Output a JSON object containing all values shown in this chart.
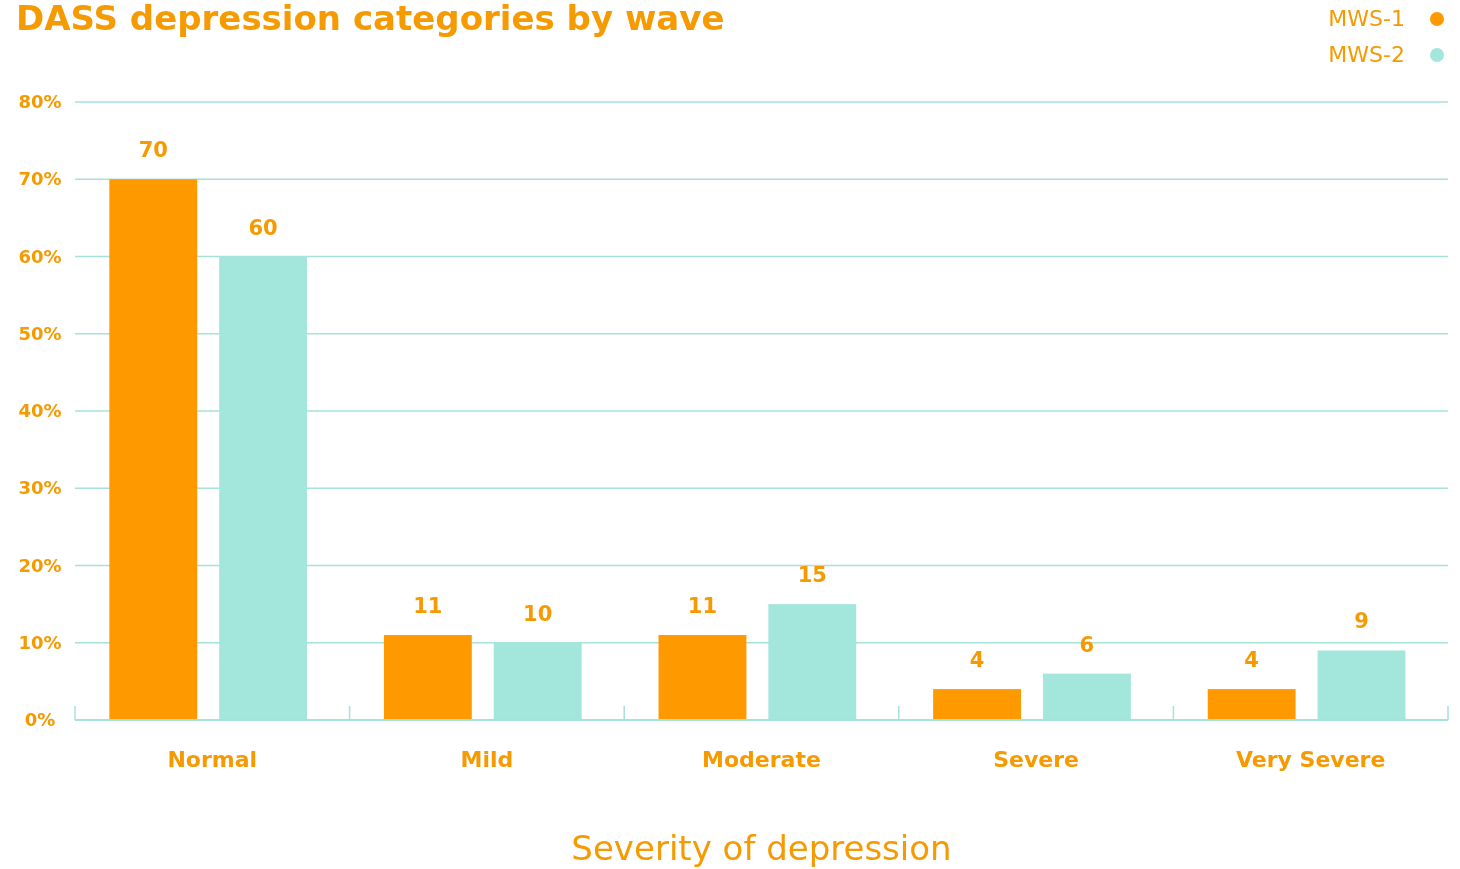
{
  "chart_data": {
    "type": "bar",
    "title": "DASS depression categories by wave",
    "xlabel": "Severity of depression",
    "categories": [
      "Normal",
      "Mild",
      "Moderate",
      "Severe",
      "Very Severe"
    ],
    "series": [
      {
        "name": "MWS-1",
        "color": "#ff9900",
        "values": [
          70,
          11,
          11,
          4,
          4
        ]
      },
      {
        "name": "MWS-2",
        "color": "#a3e6dc",
        "values": [
          60,
          10,
          15,
          6,
          9
        ]
      }
    ],
    "ylim": [
      0,
      80
    ],
    "yticks": [
      {
        "value": 0,
        "label": "0%"
      },
      {
        "value": 10,
        "label": "10%"
      },
      {
        "value": 20,
        "label": "20%"
      },
      {
        "value": 30,
        "label": "30%"
      },
      {
        "value": 40,
        "label": "40%"
      },
      {
        "value": 50,
        "label": "50%"
      },
      {
        "value": 60,
        "label": "60%"
      },
      {
        "value": 70,
        "label": "70%"
      },
      {
        "value": 80,
        "label": "80%"
      }
    ],
    "grid": "y",
    "legend": "top right",
    "data_labels": true
  }
}
